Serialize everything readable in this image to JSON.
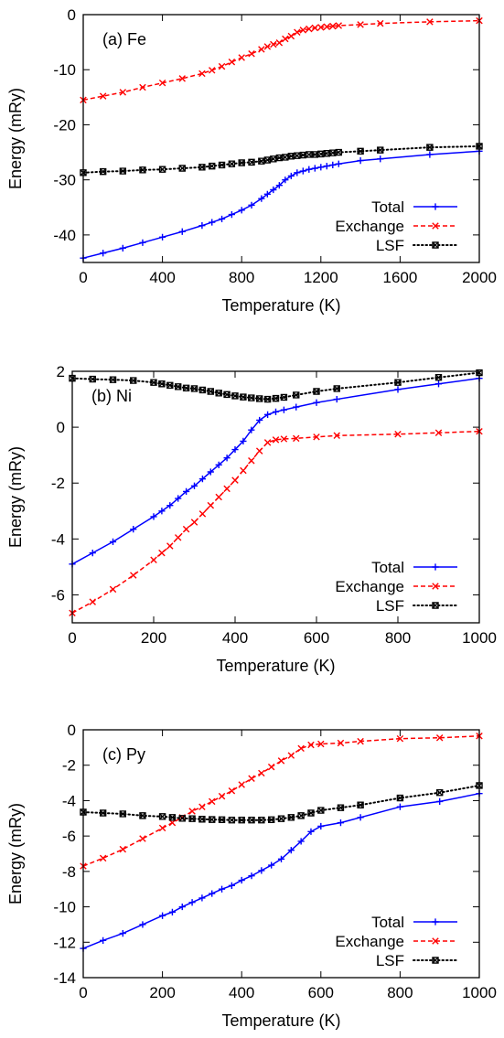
{
  "figure": {
    "panels": [
      {
        "label": "(a) Fe",
        "xlabel": "Temperature (K)",
        "ylabel": "Energy (mRy)"
      },
      {
        "label": "(b) Ni",
        "xlabel": "Temperature (K)",
        "ylabel": "Energy (mRy)"
      },
      {
        "label": "(c) Py",
        "xlabel": "Temperature (K)",
        "ylabel": "Energy (mRy)"
      }
    ],
    "legend": [
      {
        "name": "Total",
        "color": "#0000ff",
        "marker": "plus",
        "dash": "solid"
      },
      {
        "name": "Exchange",
        "color": "#ff0000",
        "marker": "cross",
        "dash": "dashed"
      },
      {
        "name": "LSF",
        "color": "#000000",
        "marker": "box",
        "dash": "dotted"
      }
    ]
  },
  "chart_data": [
    {
      "type": "line",
      "panel_label": "(a) Fe",
      "xlabel": "Temperature (K)",
      "ylabel": "Energy (mRy)",
      "xlim": [
        0,
        2000
      ],
      "ylim": [
        -45,
        0
      ],
      "xticks": [
        "0",
        "400",
        "800",
        "1200",
        "1600",
        "2000"
      ],
      "yticks": [
        "0",
        "-10",
        "-20",
        "-30",
        "-40"
      ],
      "xtick_values": [
        0,
        400,
        800,
        1200,
        1600,
        2000
      ],
      "ytick_values": [
        0,
        -10,
        -20,
        -30,
        -40
      ],
      "legend_position": "bottom-right",
      "grid": false,
      "series": [
        {
          "name": "Total",
          "color": "#0000ff",
          "marker": "plus",
          "dash": "solid",
          "x": [
            0,
            100,
            200,
            300,
            400,
            500,
            600,
            650,
            700,
            750,
            800,
            850,
            900,
            930,
            960,
            990,
            1020,
            1050,
            1080,
            1110,
            1140,
            1170,
            1200,
            1230,
            1260,
            1290,
            1400,
            1500,
            1750,
            2000
          ],
          "y": [
            -44.2,
            -43.3,
            -42.4,
            -41.4,
            -40.4,
            -39.4,
            -38.3,
            -37.7,
            -37.1,
            -36.3,
            -35.5,
            -34.6,
            -33.4,
            -32.6,
            -31.8,
            -31.0,
            -30.0,
            -29.3,
            -28.7,
            -28.4,
            -28.1,
            -27.9,
            -27.7,
            -27.5,
            -27.3,
            -27.1,
            -26.5,
            -26.2,
            -25.4,
            -24.8
          ]
        },
        {
          "name": "Exchange",
          "color": "#ff0000",
          "marker": "cross",
          "dash": "dashed",
          "x": [
            0,
            100,
            200,
            300,
            400,
            500,
            600,
            650,
            700,
            750,
            800,
            850,
            900,
            930,
            960,
            990,
            1020,
            1050,
            1080,
            1110,
            1140,
            1170,
            1200,
            1230,
            1260,
            1290,
            1400,
            1500,
            1750,
            2000
          ],
          "y": [
            -15.5,
            -14.8,
            -14.1,
            -13.2,
            -12.4,
            -11.6,
            -10.7,
            -10.1,
            -9.4,
            -8.6,
            -7.8,
            -7.1,
            -6.3,
            -5.8,
            -5.4,
            -5.1,
            -4.4,
            -3.9,
            -3.2,
            -2.8,
            -2.6,
            -2.4,
            -2.3,
            -2.2,
            -2.1,
            -2.0,
            -1.8,
            -1.6,
            -1.3,
            -1.1
          ]
        },
        {
          "name": "LSF",
          "color": "#000000",
          "marker": "box",
          "dash": "dotted",
          "x": [
            0,
            100,
            200,
            300,
            400,
            500,
            600,
            650,
            700,
            750,
            800,
            850,
            900,
            930,
            960,
            990,
            1020,
            1050,
            1080,
            1110,
            1140,
            1170,
            1200,
            1230,
            1260,
            1290,
            1400,
            1500,
            1750,
            2000
          ],
          "y": [
            -28.7,
            -28.5,
            -28.4,
            -28.2,
            -28.1,
            -27.9,
            -27.7,
            -27.5,
            -27.3,
            -27.1,
            -26.9,
            -26.8,
            -26.6,
            -26.4,
            -26.2,
            -26.0,
            -25.9,
            -25.7,
            -25.6,
            -25.5,
            -25.4,
            -25.4,
            -25.3,
            -25.2,
            -25.1,
            -25.0,
            -24.8,
            -24.6,
            -24.1,
            -23.9
          ]
        }
      ]
    },
    {
      "type": "line",
      "panel_label": "(b) Ni",
      "xlabel": "Temperature (K)",
      "ylabel": "Energy (mRy)",
      "xlim": [
        0,
        1000
      ],
      "ylim": [
        -7,
        2
      ],
      "xticks": [
        "0",
        "200",
        "400",
        "600",
        "800",
        "1000"
      ],
      "yticks": [
        "2",
        "0",
        "-2",
        "-4",
        "-6"
      ],
      "xtick_values": [
        0,
        200,
        400,
        600,
        800,
        1000
      ],
      "ytick_values": [
        2,
        0,
        -2,
        -4,
        -6
      ],
      "legend_position": "bottom-right",
      "grid": false,
      "series": [
        {
          "name": "Total",
          "color": "#0000ff",
          "marker": "plus",
          "dash": "solid",
          "x": [
            0,
            50,
            100,
            150,
            200,
            220,
            240,
            260,
            280,
            300,
            320,
            340,
            360,
            380,
            400,
            420,
            440,
            460,
            480,
            500,
            520,
            550,
            600,
            650,
            800,
            900,
            1000
          ],
          "y": [
            -4.9,
            -4.5,
            -4.1,
            -3.65,
            -3.2,
            -3.0,
            -2.8,
            -2.55,
            -2.3,
            -2.1,
            -1.85,
            -1.6,
            -1.35,
            -1.1,
            -0.8,
            -0.5,
            -0.1,
            0.25,
            0.45,
            0.55,
            0.62,
            0.72,
            0.88,
            1.0,
            1.35,
            1.55,
            1.75
          ]
        },
        {
          "name": "Exchange",
          "color": "#ff0000",
          "marker": "cross",
          "dash": "dashed",
          "x": [
            0,
            50,
            100,
            150,
            200,
            220,
            240,
            260,
            280,
            300,
            320,
            340,
            360,
            380,
            400,
            420,
            440,
            460,
            480,
            500,
            520,
            550,
            600,
            650,
            800,
            900,
            1000
          ],
          "y": [
            -6.65,
            -6.25,
            -5.8,
            -5.3,
            -4.75,
            -4.5,
            -4.25,
            -3.95,
            -3.65,
            -3.4,
            -3.1,
            -2.8,
            -2.5,
            -2.2,
            -1.9,
            -1.55,
            -1.2,
            -0.85,
            -0.55,
            -0.45,
            -0.42,
            -0.4,
            -0.35,
            -0.3,
            -0.25,
            -0.2,
            -0.15
          ]
        },
        {
          "name": "LSF",
          "color": "#000000",
          "marker": "box",
          "dash": "dotted",
          "x": [
            0,
            50,
            100,
            150,
            200,
            220,
            240,
            260,
            280,
            300,
            320,
            340,
            360,
            380,
            400,
            420,
            440,
            460,
            480,
            500,
            520,
            550,
            600,
            650,
            800,
            900,
            1000
          ],
          "y": [
            1.75,
            1.72,
            1.7,
            1.67,
            1.6,
            1.55,
            1.5,
            1.45,
            1.4,
            1.38,
            1.33,
            1.28,
            1.22,
            1.17,
            1.12,
            1.08,
            1.05,
            1.02,
            1.0,
            1.03,
            1.07,
            1.15,
            1.28,
            1.38,
            1.6,
            1.78,
            1.95
          ]
        }
      ]
    },
    {
      "type": "line",
      "panel_label": "(c) Py",
      "xlabel": "Temperature (K)",
      "ylabel": "Energy (mRy)",
      "xlim": [
        0,
        1000
      ],
      "ylim": [
        -14,
        0
      ],
      "xticks": [
        "0",
        "200",
        "400",
        "600",
        "800",
        "1000"
      ],
      "yticks": [
        "0",
        "-2",
        "-4",
        "-6",
        "-8",
        "-10",
        "-12",
        "-14"
      ],
      "xtick_values": [
        0,
        200,
        400,
        600,
        800,
        1000
      ],
      "ytick_values": [
        0,
        -2,
        -4,
        -6,
        -8,
        -10,
        -12,
        -14
      ],
      "legend_position": "bottom-right",
      "grid": false,
      "series": [
        {
          "name": "Total",
          "color": "#0000ff",
          "marker": "plus",
          "dash": "solid",
          "x": [
            0,
            50,
            100,
            150,
            200,
            225,
            250,
            275,
            300,
            325,
            350,
            375,
            400,
            425,
            450,
            475,
            500,
            525,
            550,
            575,
            600,
            650,
            700,
            800,
            900,
            1000
          ],
          "y": [
            -12.35,
            -11.9,
            -11.5,
            -11.0,
            -10.5,
            -10.3,
            -10.0,
            -9.75,
            -9.5,
            -9.25,
            -9.0,
            -8.8,
            -8.5,
            -8.25,
            -7.95,
            -7.65,
            -7.3,
            -6.8,
            -6.3,
            -5.75,
            -5.45,
            -5.25,
            -4.95,
            -4.35,
            -4.05,
            -3.6
          ]
        },
        {
          "name": "Exchange",
          "color": "#ff0000",
          "marker": "cross",
          "dash": "dashed",
          "x": [
            0,
            50,
            100,
            150,
            200,
            225,
            250,
            275,
            300,
            325,
            350,
            375,
            400,
            425,
            450,
            475,
            500,
            525,
            550,
            575,
            600,
            650,
            700,
            800,
            900,
            1000
          ],
          "y": [
            -7.7,
            -7.25,
            -6.75,
            -6.15,
            -5.55,
            -5.25,
            -4.95,
            -4.6,
            -4.35,
            -4.05,
            -3.75,
            -3.45,
            -3.1,
            -2.75,
            -2.45,
            -2.1,
            -1.75,
            -1.45,
            -1.05,
            -0.85,
            -0.8,
            -0.75,
            -0.65,
            -0.5,
            -0.45,
            -0.35
          ]
        },
        {
          "name": "LSF",
          "color": "#000000",
          "marker": "box",
          "dash": "dotted",
          "x": [
            0,
            50,
            100,
            150,
            200,
            225,
            250,
            275,
            300,
            325,
            350,
            375,
            400,
            425,
            450,
            475,
            500,
            525,
            550,
            575,
            600,
            650,
            700,
            800,
            900,
            1000
          ],
          "y": [
            -4.65,
            -4.7,
            -4.75,
            -4.85,
            -4.9,
            -4.95,
            -5.0,
            -5.02,
            -5.05,
            -5.07,
            -5.08,
            -5.1,
            -5.1,
            -5.1,
            -5.1,
            -5.08,
            -5.02,
            -4.95,
            -4.85,
            -4.7,
            -4.55,
            -4.4,
            -4.25,
            -3.85,
            -3.55,
            -3.15
          ]
        }
      ]
    }
  ]
}
